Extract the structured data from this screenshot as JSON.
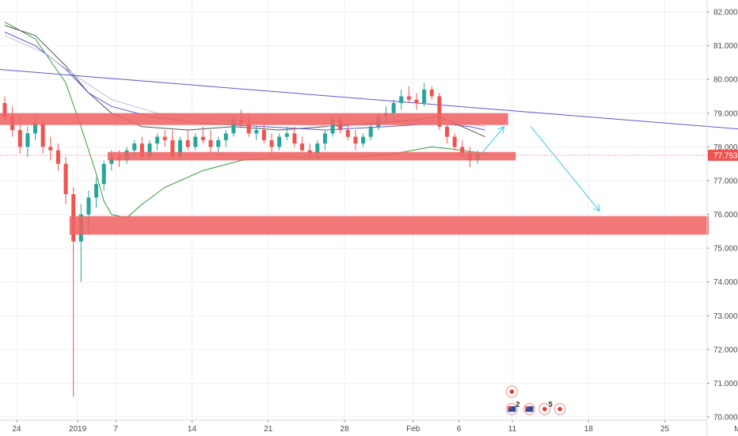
{
  "chart_data": {
    "type": "candlestick",
    "y_axis": {
      "min": 70,
      "max": 82,
      "ticks": [
        "70.000",
        "71.000",
        "72.000",
        "73.000",
        "74.000",
        "75.000",
        "76.000",
        "77.000",
        "78.000",
        "79.000",
        "80.000",
        "81.000",
        "82.000"
      ],
      "position": "right"
    },
    "x_axis": {
      "ticks": [
        {
          "label": "24",
          "i": 0
        },
        {
          "label": "2019",
          "i": 8
        },
        {
          "label": "7",
          "i": 13
        },
        {
          "label": "14",
          "i": 23
        },
        {
          "label": "21",
          "i": 33
        },
        {
          "label": "28",
          "i": 43
        },
        {
          "label": "Feb",
          "i": 52
        },
        {
          "label": "6",
          "i": 58
        },
        {
          "label": "11",
          "i": 65
        },
        {
          "label": "18",
          "i": 75
        },
        {
          "label": "25",
          "i": 85
        },
        {
          "label": "Mar",
          "i": 95
        }
      ]
    },
    "last_price": "77.753",
    "last_price_value": 77.753,
    "candles": [
      [
        79.3,
        79.5,
        78.8,
        78.9
      ],
      [
        78.9,
        79.2,
        78.3,
        78.5
      ],
      [
        78.5,
        78.9,
        77.8,
        78.0
      ],
      [
        78.0,
        78.6,
        77.7,
        78.4
      ],
      [
        78.4,
        78.9,
        78.2,
        78.7
      ],
      [
        78.7,
        78.8,
        77.8,
        78.0
      ],
      [
        78.0,
        78.3,
        77.6,
        77.9
      ],
      [
        77.9,
        78.1,
        77.3,
        77.5
      ],
      [
        77.5,
        77.7,
        76.3,
        76.6
      ],
      [
        76.6,
        76.8,
        70.6,
        75.2
      ],
      [
        75.2,
        76.3,
        74.0,
        76.0
      ],
      [
        76.0,
        76.7,
        75.4,
        76.5
      ],
      [
        76.5,
        77.1,
        76.2,
        76.9
      ],
      [
        76.9,
        77.6,
        76.7,
        77.5
      ],
      [
        77.5,
        77.9,
        77.3,
        77.7
      ],
      [
        77.7,
        77.9,
        77.4,
        77.6
      ],
      [
        77.6,
        78.0,
        77.5,
        77.9
      ],
      [
        77.9,
        78.2,
        77.7,
        78.1
      ],
      [
        78.1,
        78.3,
        77.6,
        77.7
      ],
      [
        77.7,
        78.2,
        77.6,
        78.1
      ],
      [
        78.1,
        78.4,
        77.9,
        78.3
      ],
      [
        78.3,
        78.5,
        78.0,
        78.2
      ],
      [
        78.2,
        78.5,
        77.6,
        77.7
      ],
      [
        77.7,
        78.3,
        77.6,
        78.2
      ],
      [
        78.2,
        78.5,
        77.9,
        78.0
      ],
      [
        78.0,
        78.4,
        77.9,
        78.3
      ],
      [
        78.3,
        78.6,
        78.1,
        78.2
      ],
      [
        78.2,
        78.5,
        77.8,
        78.0
      ],
      [
        78.0,
        78.3,
        77.8,
        78.2
      ],
      [
        78.2,
        78.5,
        78.0,
        78.4
      ],
      [
        78.4,
        78.9,
        78.3,
        78.8
      ],
      [
        78.8,
        79.1,
        78.6,
        78.7
      ],
      [
        78.7,
        78.9,
        78.3,
        78.4
      ],
      [
        78.4,
        78.6,
        78.2,
        78.5
      ],
      [
        78.5,
        78.7,
        78.1,
        78.2
      ],
      [
        78.2,
        78.4,
        77.8,
        78.0
      ],
      [
        78.0,
        78.4,
        77.9,
        78.3
      ],
      [
        78.3,
        78.6,
        78.2,
        78.4
      ],
      [
        78.4,
        78.6,
        78.0,
        78.1
      ],
      [
        78.1,
        78.3,
        77.8,
        77.9
      ],
      [
        77.9,
        78.1,
        77.6,
        77.8
      ],
      [
        77.8,
        78.2,
        77.6,
        78.1
      ],
      [
        78.1,
        78.5,
        77.9,
        78.4
      ],
      [
        78.4,
        78.9,
        78.3,
        78.8
      ],
      [
        78.8,
        78.9,
        78.4,
        78.5
      ],
      [
        78.5,
        78.7,
        78.2,
        78.3
      ],
      [
        78.3,
        78.5,
        77.9,
        78.1
      ],
      [
        78.1,
        78.4,
        78.0,
        78.3
      ],
      [
        78.3,
        78.7,
        78.2,
        78.6
      ],
      [
        78.6,
        79.0,
        78.5,
        78.9
      ],
      [
        78.9,
        79.2,
        78.7,
        79.0
      ],
      [
        79.0,
        79.4,
        78.8,
        79.3
      ],
      [
        79.3,
        79.7,
        79.1,
        79.5
      ],
      [
        79.5,
        79.8,
        79.3,
        79.4
      ],
      [
        79.4,
        79.6,
        79.1,
        79.3
      ],
      [
        79.3,
        79.9,
        79.2,
        79.7
      ],
      [
        79.7,
        79.8,
        79.4,
        79.5
      ],
      [
        79.5,
        79.6,
        78.5,
        78.6
      ],
      [
        78.6,
        78.7,
        78.1,
        78.3
      ],
      [
        78.3,
        78.4,
        77.9,
        78.0
      ],
      [
        78.0,
        78.2,
        77.7,
        77.8
      ],
      [
        77.8,
        78.0,
        77.4,
        77.6
      ],
      [
        77.6,
        77.9,
        77.5,
        77.8
      ]
    ],
    "moving_averages": [
      {
        "color": "#3a9a3a",
        "points": [
          [
            0,
            81.7
          ],
          [
            4,
            81.2
          ],
          [
            8,
            79.9
          ],
          [
            10,
            78.6
          ],
          [
            12,
            77.2
          ],
          [
            13,
            76.4
          ],
          [
            14,
            76.0
          ],
          [
            16,
            75.9
          ],
          [
            18,
            76.3
          ],
          [
            21,
            76.8
          ],
          [
            26,
            77.3
          ],
          [
            31,
            77.6
          ],
          [
            36,
            77.7
          ],
          [
            41,
            77.7
          ],
          [
            46,
            77.7
          ],
          [
            51,
            77.8
          ],
          [
            56,
            78.0
          ],
          [
            60,
            77.9
          ],
          [
            63,
            77.8
          ]
        ]
      },
      {
        "color": "#555555",
        "points": [
          [
            0,
            81.6
          ],
          [
            4,
            81.3
          ],
          [
            8,
            80.4
          ],
          [
            11,
            79.6
          ],
          [
            14,
            79.0
          ],
          [
            18,
            78.6
          ],
          [
            24,
            78.5
          ],
          [
            30,
            78.6
          ],
          [
            36,
            78.5
          ],
          [
            42,
            78.6
          ],
          [
            48,
            78.7
          ],
          [
            54,
            78.8
          ],
          [
            57,
            78.9
          ],
          [
            60,
            78.6
          ],
          [
            63,
            78.3
          ]
        ]
      },
      {
        "color": "#5a5ad0",
        "points": [
          [
            0,
            81.4
          ],
          [
            4,
            81.0
          ],
          [
            8,
            80.3
          ],
          [
            11,
            79.6
          ],
          [
            14,
            79.2
          ],
          [
            19,
            78.9
          ],
          [
            26,
            78.7
          ],
          [
            34,
            78.6
          ],
          [
            42,
            78.5
          ],
          [
            50,
            78.6
          ],
          [
            57,
            78.7
          ],
          [
            61,
            78.6
          ],
          [
            63,
            78.5
          ]
        ]
      },
      {
        "color": "#c8b8d8",
        "points": [
          [
            0,
            81.3
          ],
          [
            5,
            80.8
          ],
          [
            10,
            80.0
          ],
          [
            14,
            79.4
          ],
          [
            20,
            79.0
          ],
          [
            28,
            78.8
          ],
          [
            36,
            78.7
          ],
          [
            44,
            78.6
          ],
          [
            52,
            78.7
          ],
          [
            58,
            78.8
          ],
          [
            63,
            78.6
          ]
        ]
      }
    ],
    "trend_line": {
      "color": "#5a5ad0",
      "from": [
        -1,
        80.3
      ],
      "to": [
        98,
        78.5
      ]
    },
    "zones": [
      {
        "from": -1,
        "to": 66,
        "low": 78.65,
        "high": 79.0
      },
      {
        "from": 13.5,
        "to": 67,
        "low": 77.6,
        "high": 77.85
      },
      {
        "from": 8.5,
        "to": 98,
        "low": 75.4,
        "high": 75.95
      }
    ],
    "arrows": [
      {
        "from": [
          62.5,
          77.8
        ],
        "to": [
          65.5,
          78.6
        ]
      },
      {
        "from": [
          69,
          78.6
        ],
        "to": [
          78,
          76.1
        ]
      }
    ],
    "events": [
      {
        "kind": "dot",
        "i": 66.5,
        "row": 0,
        "label": ""
      },
      {
        "kind": "flag",
        "i": 66.5,
        "row": 1,
        "label": "2"
      },
      {
        "kind": "flag",
        "i": 68.8,
        "row": 1,
        "label": ""
      },
      {
        "kind": "dot",
        "i": 70.8,
        "row": 1,
        "label": "5"
      },
      {
        "kind": "dot",
        "i": 72.8,
        "row": 1,
        "label": ""
      }
    ],
    "colors": {
      "up": "#26a69a",
      "down": "#ef5350",
      "zone": "#f06464",
      "arrow": "#42c6e6",
      "price_line": "#ef5350",
      "grid": "#eef0f3"
    },
    "grid": true
  }
}
